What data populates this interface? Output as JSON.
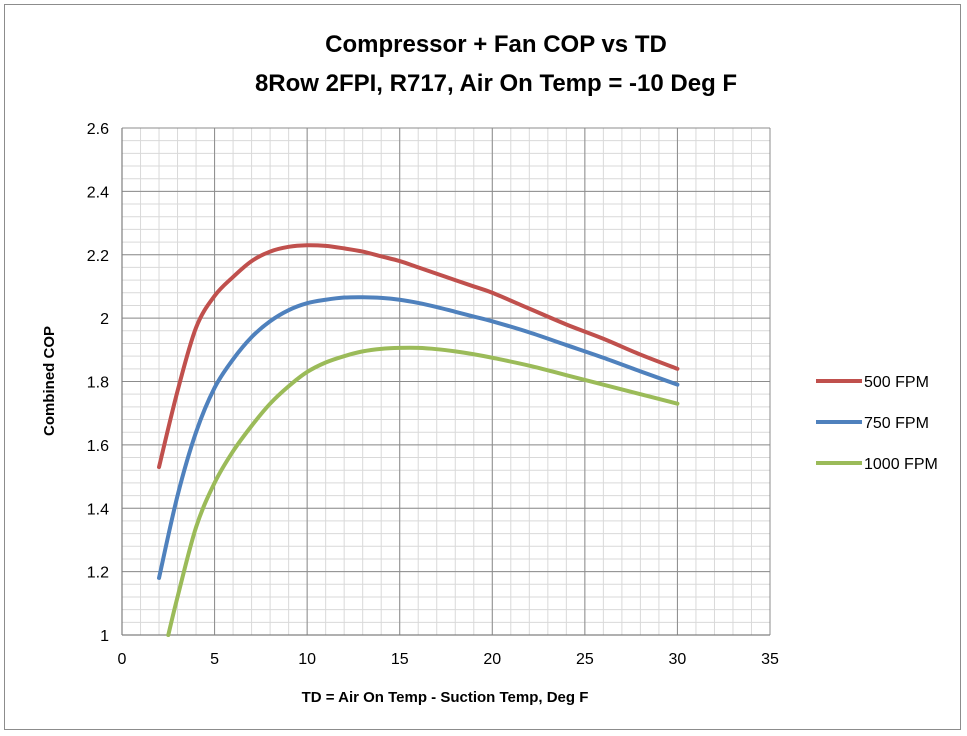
{
  "chart_data": {
    "type": "line",
    "title_line1": "Compressor + Fan COP vs TD",
    "title_line2": "8Row 2FPI, R717, Air On Temp = -10 Deg F",
    "xlabel": "TD = Air On Temp - Suction Temp, Deg F",
    "ylabel": "Combined COP",
    "xlim": [
      0,
      35
    ],
    "ylim": [
      1,
      2.6
    ],
    "x_ticks": [
      0,
      5,
      10,
      15,
      20,
      25,
      30,
      35
    ],
    "y_ticks": [
      1,
      1.2,
      1.4,
      1.6,
      1.8,
      2,
      2.2,
      2.4,
      2.6
    ],
    "x_tick_labels": [
      "0",
      "5",
      "10",
      "15",
      "20",
      "25",
      "30",
      "35"
    ],
    "y_tick_labels": [
      "1",
      "1.2",
      "1.4",
      "1.6",
      "1.8",
      "2",
      "2.2",
      "2.4",
      "2.6"
    ],
    "grid": true,
    "legend_position": "right",
    "series": [
      {
        "name": "500 FPM",
        "color": "#c0504d",
        "x": [
          2,
          3,
          4,
          5,
          6,
          7,
          8,
          9,
          10,
          11,
          12,
          13,
          14,
          15,
          16,
          17,
          18,
          19,
          20,
          22,
          24,
          26,
          28,
          30
        ],
        "y": [
          1.53,
          1.77,
          1.97,
          2.07,
          2.13,
          2.18,
          2.21,
          2.225,
          2.23,
          2.228,
          2.22,
          2.21,
          2.195,
          2.18,
          2.16,
          2.14,
          2.12,
          2.1,
          2.08,
          2.03,
          1.98,
          1.935,
          1.885,
          1.84
        ]
      },
      {
        "name": "750 FPM",
        "color": "#4f81bd",
        "x": [
          2,
          3,
          4,
          5,
          6,
          7,
          8,
          9,
          10,
          11,
          12,
          13,
          14,
          15,
          16,
          17,
          18,
          19,
          20,
          22,
          24,
          26,
          28,
          30
        ],
        "y": [
          1.18,
          1.44,
          1.64,
          1.78,
          1.87,
          1.94,
          1.99,
          2.025,
          2.047,
          2.058,
          2.065,
          2.066,
          2.064,
          2.058,
          2.048,
          2.035,
          2.02,
          2.005,
          1.99,
          1.955,
          1.915,
          1.875,
          1.832,
          1.79
        ]
      },
      {
        "name": "1000 FPM",
        "color": "#9bbb59",
        "x": [
          2.5,
          3,
          4,
          5,
          6,
          7,
          8,
          9,
          10,
          11,
          12,
          13,
          14,
          15,
          16,
          17,
          18,
          19,
          20,
          22,
          24,
          26,
          28,
          30
        ],
        "y": [
          1.0,
          1.12,
          1.34,
          1.48,
          1.58,
          1.66,
          1.73,
          1.785,
          1.83,
          1.86,
          1.88,
          1.895,
          1.903,
          1.906,
          1.906,
          1.902,
          1.895,
          1.886,
          1.875,
          1.85,
          1.82,
          1.79,
          1.76,
          1.73
        ]
      }
    ]
  }
}
